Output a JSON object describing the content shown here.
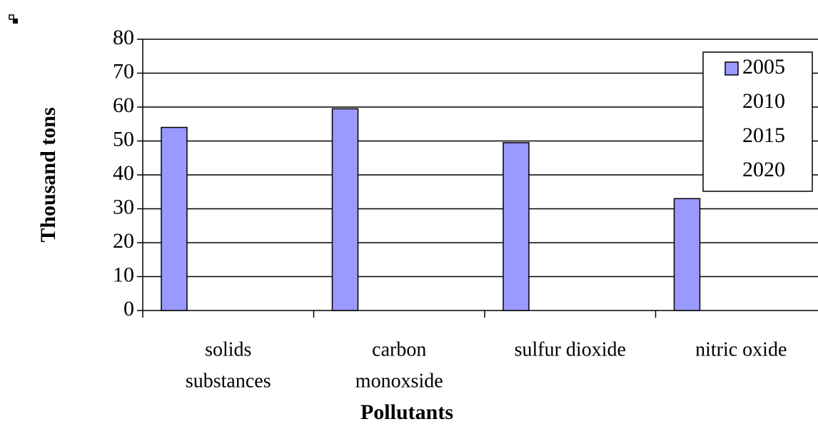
{
  "chart_data": {
    "type": "bar",
    "categories": [
      [
        "solids",
        "substances"
      ],
      [
        "carbon",
        "monoxside"
      ],
      [
        "sulfur dioxide"
      ],
      [
        "nitric oxide"
      ]
    ],
    "series": [
      {
        "name": "2005",
        "color": "#9999ff",
        "values": [
          54,
          59.5,
          49.5,
          33
        ]
      },
      {
        "name": "2010",
        "color": "#ffffff",
        "values": [
          0,
          0,
          0,
          0
        ]
      },
      {
        "name": "2015",
        "color": "#ffffff",
        "values": [
          0,
          0,
          0,
          0
        ]
      },
      {
        "name": "2020",
        "color": "#ffffff",
        "values": [
          0,
          0,
          0,
          0
        ]
      }
    ],
    "ylabel": "Thousand tons",
    "xlabel": "Pollutants",
    "ylim": [
      0,
      80
    ],
    "yticks": [
      0,
      10,
      20,
      30,
      40,
      50,
      60,
      70,
      80
    ],
    "grid": true,
    "legend": "upper right"
  }
}
